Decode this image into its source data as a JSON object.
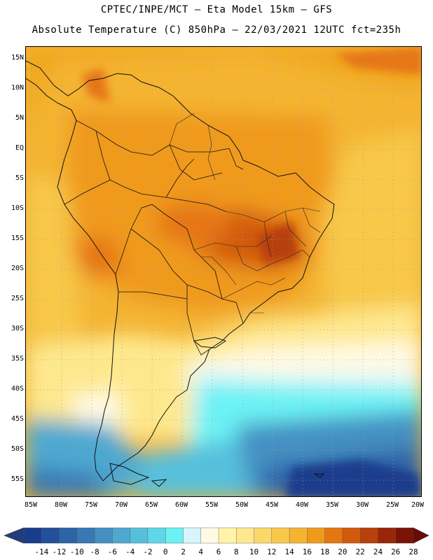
{
  "header": {
    "title_line1": "CPTEC/INPE/MCT –  Eta Model 15km – GFS",
    "title_line2": "Absolute Temperature (C) 850hPa – 22/03/2021 12UTC fct=235h"
  },
  "map": {
    "lat_labels": [
      "15N",
      "10N",
      "5N",
      "EQ",
      "5S",
      "10S",
      "15S",
      "20S",
      "25S",
      "30S",
      "35S",
      "40S",
      "45S",
      "50S",
      "55S"
    ],
    "lon_labels": [
      "85W",
      "80W",
      "75W",
      "70W",
      "65W",
      "60W",
      "55W",
      "50W",
      "45W",
      "40W",
      "35W",
      "30W",
      "25W",
      "20W"
    ]
  },
  "colorbar": {
    "labels": [
      "-14",
      "-12",
      "-10",
      "-8",
      "-6",
      "-4",
      "-2",
      "0",
      "2",
      "4",
      "6",
      "8",
      "10",
      "12",
      "14",
      "16",
      "18",
      "20",
      "22",
      "24",
      "26",
      "28"
    ],
    "colors": [
      "#1a3c8c",
      "#23509a",
      "#2d64a8",
      "#3878b4",
      "#4490c2",
      "#4ea8d0",
      "#56c0dc",
      "#5ed8e8",
      "#6cf2f4",
      "#d4f6fc",
      "#fffae4",
      "#fff4a8",
      "#fee88e",
      "#fcd86a",
      "#f8c84a",
      "#f4b432",
      "#f09a1c",
      "#e67612",
      "#d25a0c",
      "#b8400a",
      "#9a2608",
      "#7c1206"
    ],
    "under_color": "#243c7e",
    "over_color": "#6a0a04"
  }
}
